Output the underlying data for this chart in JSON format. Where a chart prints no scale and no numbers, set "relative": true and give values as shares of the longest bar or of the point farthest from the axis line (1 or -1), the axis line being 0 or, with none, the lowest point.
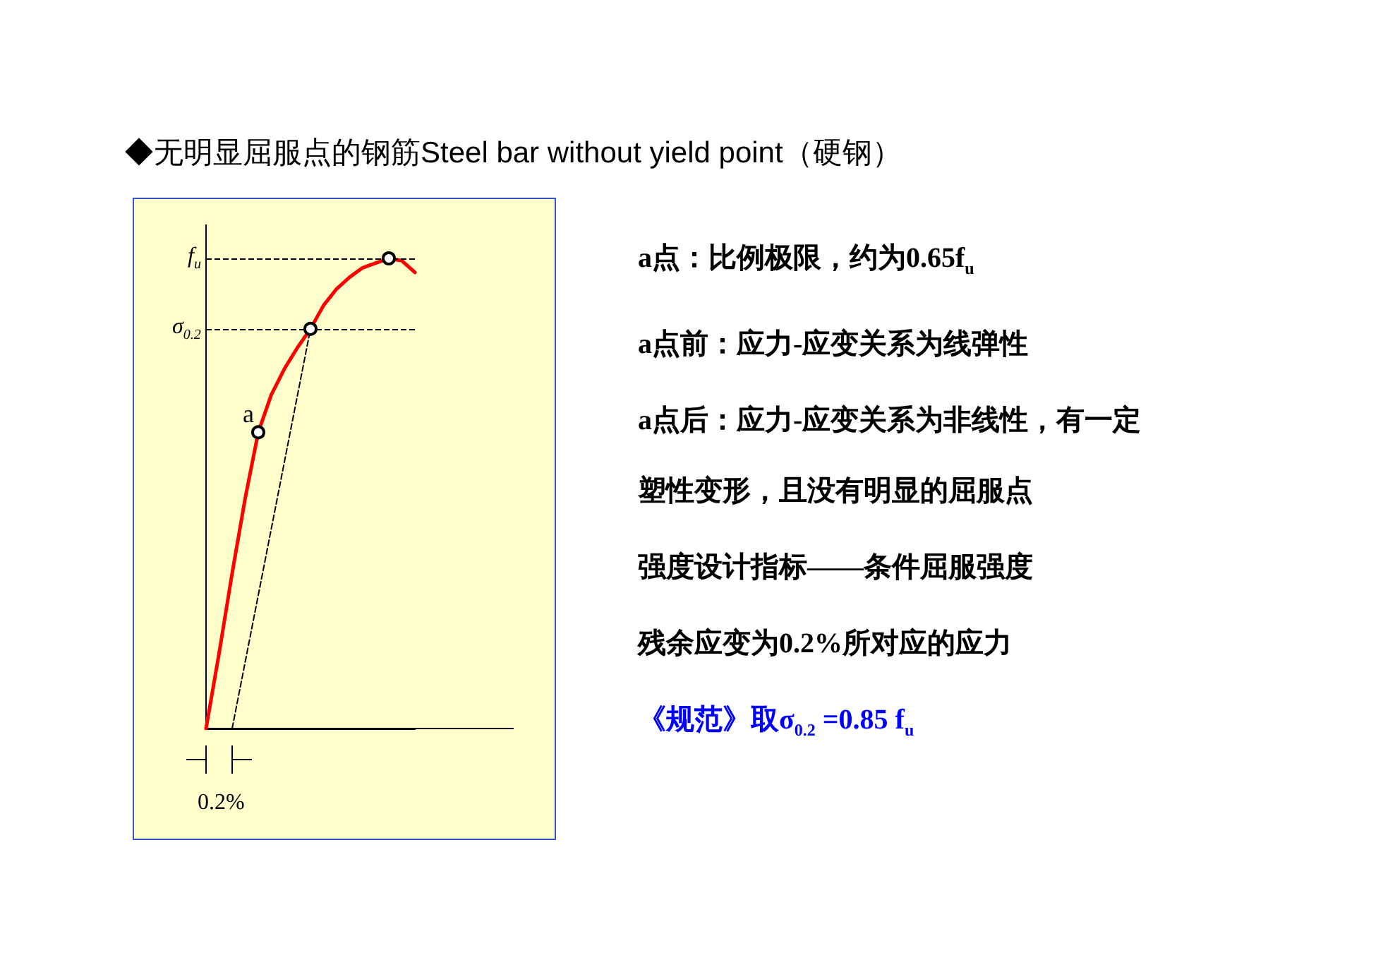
{
  "chart_data": {
    "type": "line",
    "title": "◆无明显屈服点的钢筋Steel bar without yield point（硬钢）",
    "relative": true,
    "categories": [
      null,
      null,
      null,
      null,
      null,
      null,
      null,
      null,
      null,
      null,
      null,
      null,
      null,
      null,
      null,
      null,
      null
    ],
    "series": [
      {
        "type": "line",
        "color": "#ff0000",
        "marker": "none",
        "line_style": "solid",
        "values": [
          0,
          0.16,
          0.33,
          0.49,
          0.63,
          0.71,
          0.765,
          0.81,
          0.85,
          0.9,
          0.935,
          0.96,
          0.98,
          0.99,
          1.0,
          0.995,
          0.97
        ]
      },
      {
        "type": "line",
        "color": "#000000",
        "marker": "none",
        "line_style": "dashed",
        "values": [
          null,
          null,
          0,
          null,
          null,
          null,
          null,
          null,
          0.85,
          null,
          null,
          null,
          null,
          null,
          null,
          null,
          null
        ]
      },
      {
        "type": "line",
        "color": "#000000",
        "marker": "circle",
        "line_style": "none",
        "values": [
          null,
          null,
          null,
          null,
          0.63,
          null,
          null,
          null,
          0.85,
          null,
          null,
          null,
          null,
          null,
          1.0,
          null,
          null
        ]
      }
    ],
    "ref_lines": [
      {
        "axis": "y",
        "value": 1.0,
        "label": "f$_{u}$",
        "color": "#000000",
        "line_style": "dashed"
      },
      {
        "axis": "y",
        "value": 0.85,
        "label": "σ$_{0.2}$",
        "color": "#000000",
        "line_style": "dashed"
      }
    ],
    "annotations": [
      {
        "text": "a",
        "y": 0.63
      },
      "0.2%",
      "a点：比例极限，约为0.65f$_{u}$",
      "a点前：应力-应变关系为线弹性",
      "a点后：应力-应变关系为非线性，有一定塑性变形，且没有明显的屈服点",
      "强度设计指标——条件屈服强度",
      "残余应变为0.2%所对应的应力",
      "《规范》取σ$_{0.2}$ =0.85 f$_{u}$"
    ]
  }
}
